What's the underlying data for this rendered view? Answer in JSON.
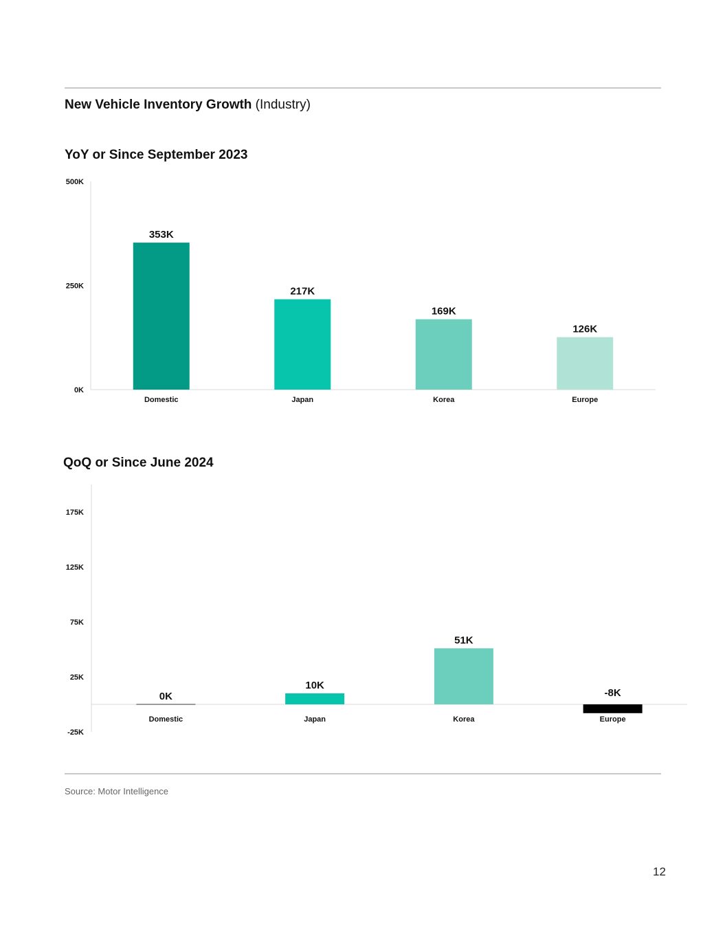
{
  "header": {
    "title_bold": "New Vehicle Inventory Growth",
    "title_rest": " (Industry)"
  },
  "chart_data": [
    {
      "type": "bar",
      "title": "YoY or Since September 2023",
      "categories": [
        "Domestic",
        "Japan",
        "Korea",
        "Europe"
      ],
      "values": [
        353,
        217,
        169,
        126
      ],
      "value_labels": [
        "353K",
        "217K",
        "169K",
        "126K"
      ],
      "colors": [
        "#039a86",
        "#07c4ad",
        "#6ccfbd",
        "#b0e3d6"
      ],
      "ylim": [
        0,
        500
      ],
      "yticks": [
        0,
        250,
        500
      ],
      "ytick_labels": [
        "0K",
        "250K",
        "500K"
      ],
      "xlabel": "",
      "ylabel": "",
      "grid": false
    },
    {
      "type": "bar",
      "title": "QoQ or Since June 2024",
      "categories": [
        "Domestic",
        "Japan",
        "Korea",
        "Europe"
      ],
      "values": [
        0,
        10,
        51,
        -8
      ],
      "value_labels": [
        "0K",
        "10K",
        "51K",
        "-8K"
      ],
      "colors": [
        "#7a7a7a",
        "#07c4ad",
        "#6ccfbd",
        "#000000"
      ],
      "ylim": [
        -25,
        200
      ],
      "yticks": [
        -25,
        25,
        75,
        125,
        175
      ],
      "ytick_labels": [
        "-25K",
        "25K",
        "75K",
        "125K",
        "175K"
      ],
      "xlabel": "",
      "ylabel": "",
      "grid": false
    }
  ],
  "footer": {
    "source": "Source: Motor Intelligence",
    "page_number": "12"
  }
}
